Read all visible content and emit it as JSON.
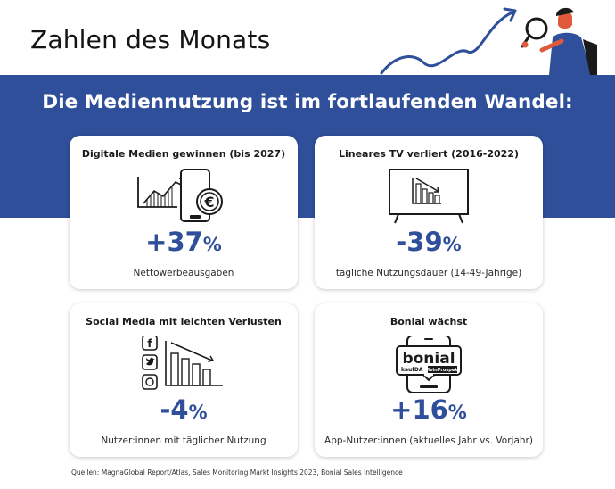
{
  "header": {
    "title": "Zahlen des Monats"
  },
  "band": {
    "subtitle": "Die Mediennutzung ist im fortlaufenden Wandel:"
  },
  "cards": [
    {
      "title": "Digitale Medien gewinnen (bis 2027)",
      "value": "+37",
      "unit": "%",
      "description": "Nettowerbeausgaben",
      "icon": "phone-growth-chart-euro-icon"
    },
    {
      "title": "Lineares TV verliert (2016-2022)",
      "value": "-39",
      "unit": "%",
      "description": "tägliche Nutzungsdauer (14-49-Jährige)",
      "icon": "tv-declining-chart-icon"
    },
    {
      "title": "Social Media mit leichten Verlusten",
      "value": "-4",
      "unit": "%",
      "description": "Nutzer:innen mit täglicher Nutzung",
      "icon": "social-media-declining-chart-icon"
    },
    {
      "title": "Bonial wächst",
      "value": "+16",
      "unit": "%",
      "description": "App-Nutzer:innen (aktuelles Jahr vs. Vorjahr)",
      "icon": "bonial-app-phone-icon"
    }
  ],
  "bonial_logo": {
    "brand": "bonial",
    "sub_brands": [
      "kaufDA",
      "MeinProspekt"
    ]
  },
  "footer": {
    "sources": "Quellen: MagnaGlobal Report/Atlas, Sales Monitoring Markt Insights 2023, Bonial Sales Intelligence"
  },
  "colors": {
    "accent": "#2f4f9a",
    "orange": "#e0593a",
    "text": "#141414"
  }
}
